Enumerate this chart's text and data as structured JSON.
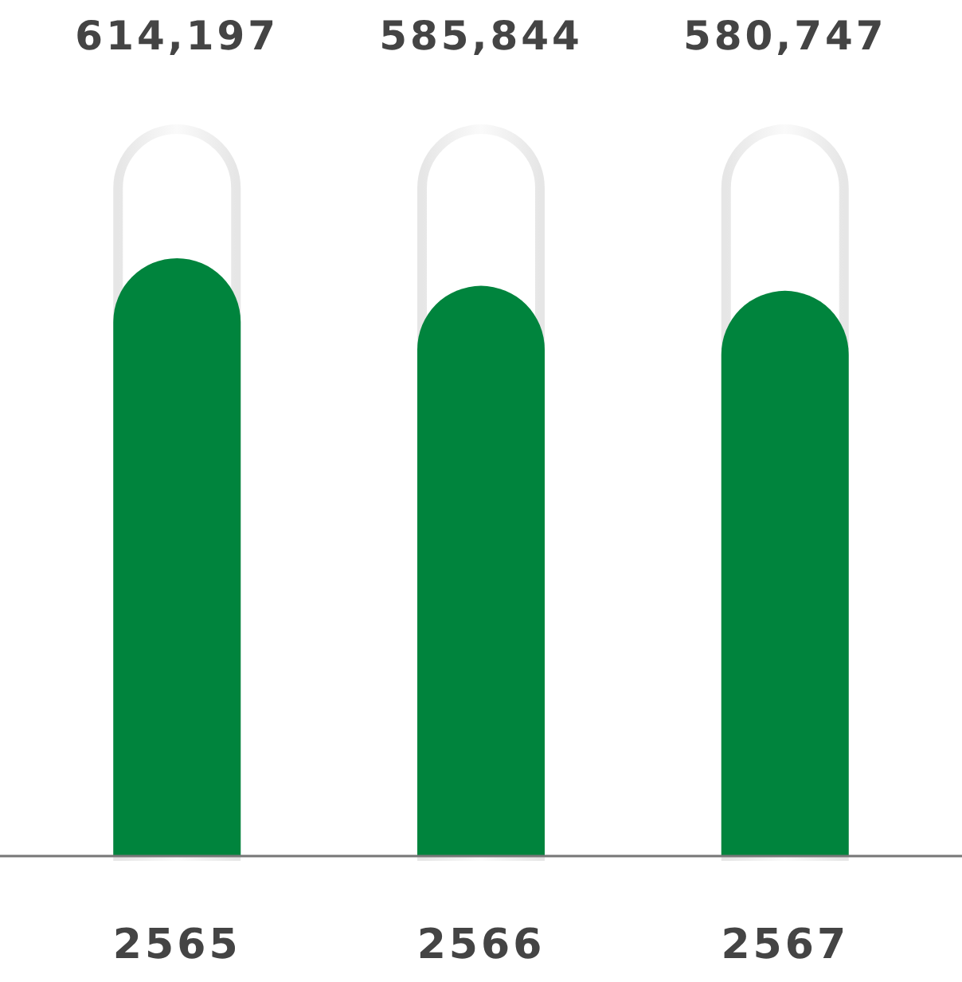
{
  "chart_data": {
    "type": "bar",
    "categories": [
      "2565",
      "2566",
      "2567"
    ],
    "values": [
      614197,
      585844,
      580747
    ],
    "value_labels": [
      "614,197",
      "585,844",
      "580,747"
    ],
    "color": "#00843d"
  }
}
